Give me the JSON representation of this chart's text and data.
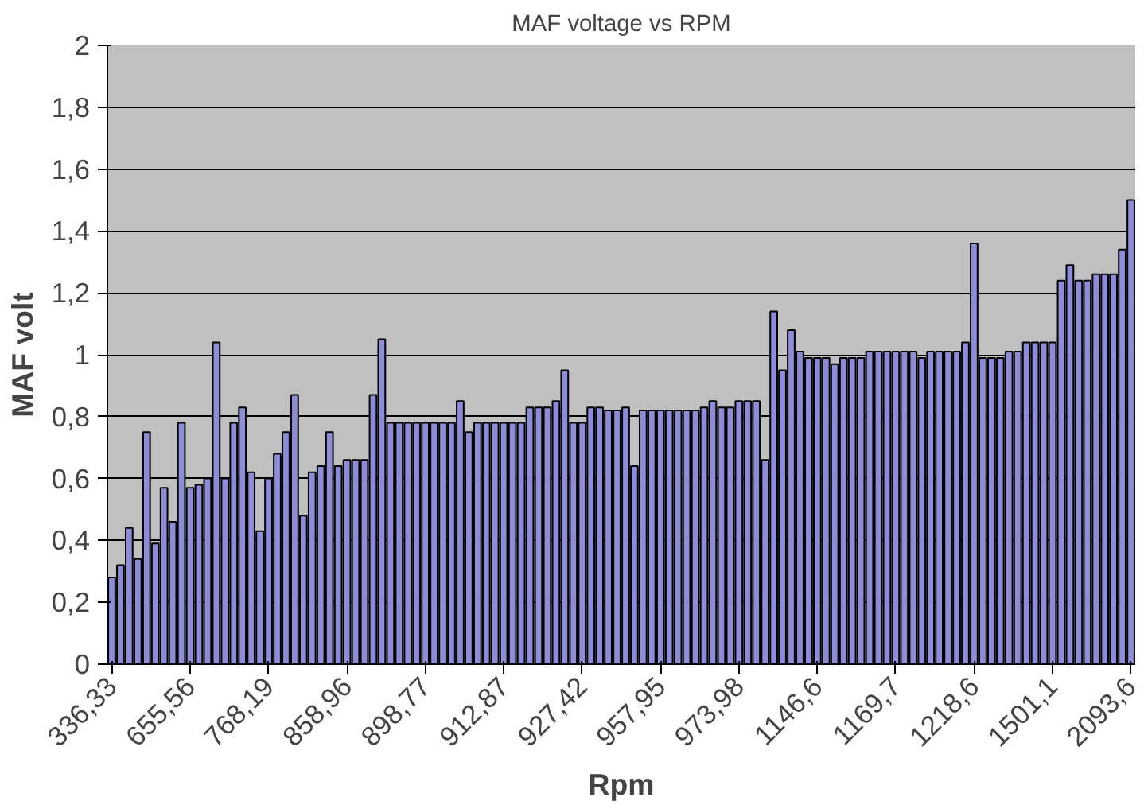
{
  "chart_data": {
    "type": "bar",
    "title": "MAF voltage vs RPM",
    "xlabel": "Rpm",
    "ylabel": "MAF volt",
    "categories": [
      "336,33",
      null,
      null,
      null,
      null,
      null,
      null,
      null,
      null,
      "655,56",
      null,
      null,
      null,
      null,
      null,
      null,
      null,
      null,
      "768,19",
      null,
      null,
      null,
      null,
      null,
      null,
      null,
      null,
      "858,96",
      null,
      null,
      null,
      null,
      null,
      null,
      null,
      null,
      "898,77",
      null,
      null,
      null,
      null,
      null,
      null,
      null,
      null,
      "912,87",
      null,
      null,
      null,
      null,
      null,
      null,
      null,
      null,
      "927,42",
      null,
      null,
      null,
      null,
      null,
      null,
      null,
      null,
      "957,95",
      null,
      null,
      null,
      null,
      null,
      null,
      null,
      null,
      "973,98",
      null,
      null,
      null,
      null,
      null,
      null,
      null,
      null,
      "1146,6",
      null,
      null,
      null,
      null,
      null,
      null,
      null,
      null,
      "1169,7",
      null,
      null,
      null,
      null,
      null,
      null,
      null,
      null,
      "1218,6",
      null,
      null,
      null,
      null,
      null,
      null,
      null,
      null,
      "1501,1",
      null,
      null,
      null,
      null,
      null,
      null,
      null,
      null,
      "2093,6"
    ],
    "values": [
      0.28,
      0.32,
      0.44,
      0.34,
      0.75,
      0.39,
      0.57,
      0.46,
      0.78,
      0.57,
      0.58,
      0.6,
      1.04,
      0.6,
      0.78,
      0.83,
      0.62,
      0.43,
      0.6,
      0.68,
      0.75,
      0.87,
      0.48,
      0.62,
      0.64,
      0.75,
      0.64,
      0.66,
      0.66,
      0.66,
      0.87,
      1.05,
      0.78,
      0.78,
      0.78,
      0.78,
      0.78,
      0.78,
      0.78,
      0.78,
      0.85,
      0.75,
      0.78,
      0.78,
      0.78,
      0.78,
      0.78,
      0.78,
      0.83,
      0.83,
      0.83,
      0.85,
      0.95,
      0.78,
      0.78,
      0.83,
      0.83,
      0.82,
      0.82,
      0.83,
      0.64,
      0.82,
      0.82,
      0.82,
      0.82,
      0.82,
      0.82,
      0.82,
      0.83,
      0.85,
      0.83,
      0.83,
      0.85,
      0.85,
      0.85,
      0.66,
      1.14,
      0.95,
      1.08,
      1.01,
      0.99,
      0.99,
      0.99,
      0.97,
      0.99,
      0.99,
      0.99,
      1.01,
      1.01,
      1.01,
      1.01,
      1.01,
      1.01,
      0.99,
      1.01,
      1.01,
      1.01,
      1.01,
      1.04,
      1.36,
      0.99,
      0.99,
      0.99,
      1.01,
      1.01,
      1.04,
      1.04,
      1.04,
      1.04,
      1.24,
      1.29,
      1.24,
      1.24,
      1.26,
      1.26,
      1.26,
      1.34,
      1.5
    ],
    "color": "#8c8cd9",
    "ylim": [
      0,
      2
    ],
    "yticks": [
      0,
      {
        "value": 0.2,
        "label": "0,2"
      },
      {
        "value": 0.4,
        "label": "0,4"
      },
      {
        "value": 0.6,
        "label": "0,6"
      },
      {
        "value": 0.8,
        "label": "0,8"
      },
      1,
      {
        "value": 1.2,
        "label": "1,2"
      },
      {
        "value": 1.4,
        "label": "1,4"
      },
      {
        "value": 1.6,
        "label": "1,6"
      },
      {
        "value": 1.8,
        "label": "1,8"
      },
      2
    ],
    "grid": "y"
  }
}
